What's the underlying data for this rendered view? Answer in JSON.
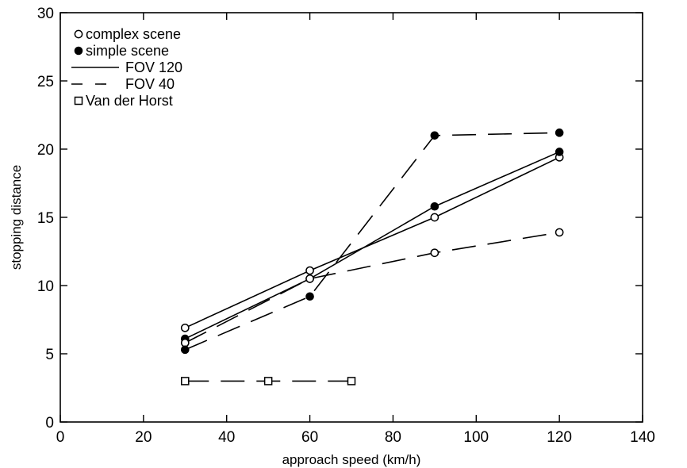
{
  "chart_data": {
    "type": "line",
    "title": "",
    "xlabel": "approach speed (km/h)",
    "ylabel": "stopping distance",
    "xlim": [
      0,
      140
    ],
    "ylim": [
      0,
      30
    ],
    "xticks": [
      0,
      20,
      40,
      60,
      80,
      100,
      120,
      140
    ],
    "yticks": [
      0,
      5,
      10,
      15,
      20,
      25,
      30
    ],
    "grid": false,
    "legend_position": "top-left",
    "legend": [
      {
        "label": "complex scene",
        "symbol": "open-circle"
      },
      {
        "label": "simple scene",
        "symbol": "filled-circle"
      },
      {
        "label": "FOV 120",
        "symbol": "solid-line"
      },
      {
        "label": "FOV 40",
        "symbol": "dashed-line"
      },
      {
        "label": "Van der Horst",
        "symbol": "open-square"
      }
    ],
    "series": [
      {
        "scene": "complex",
        "fov": "120",
        "marker": "open-circle",
        "line": "solid",
        "x": [
          30,
          60,
          90,
          120
        ],
        "y": [
          6.9,
          11.1,
          15.0,
          19.4
        ]
      },
      {
        "scene": "simple",
        "fov": "120",
        "marker": "filled-circle",
        "line": "solid",
        "x": [
          30,
          60,
          90,
          120
        ],
        "y": [
          6.1,
          10.5,
          15.8,
          19.8
        ]
      },
      {
        "scene": "complex",
        "fov": "40",
        "marker": "open-circle",
        "line": "dashed",
        "x": [
          30,
          60,
          90,
          120
        ],
        "y": [
          5.8,
          10.5,
          12.4,
          13.9
        ]
      },
      {
        "scene": "simple",
        "fov": "40",
        "marker": "filled-circle",
        "line": "dashed",
        "x": [
          30,
          60,
          90,
          120
        ],
        "y": [
          5.3,
          9.2,
          21.0,
          21.2
        ]
      },
      {
        "scene": "Van der Horst",
        "marker": "open-square",
        "line": "dashed",
        "x": [
          30,
          50,
          70
        ],
        "y": [
          3.0,
          3.0,
          3.0
        ]
      }
    ]
  }
}
